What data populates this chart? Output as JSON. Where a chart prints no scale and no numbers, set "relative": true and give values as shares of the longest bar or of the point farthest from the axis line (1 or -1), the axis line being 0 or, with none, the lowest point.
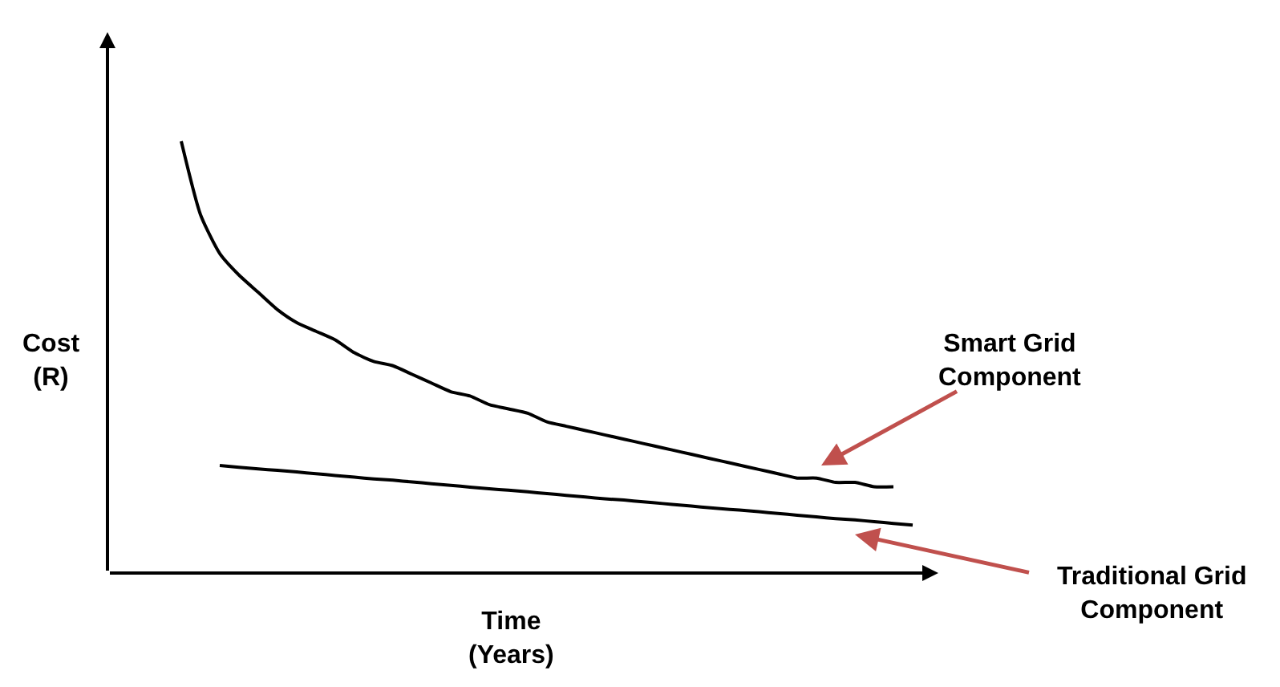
{
  "chart_data": {
    "type": "line",
    "relative": true,
    "xlabel": "Time\n(Years)",
    "ylabel": "Cost\n(R)",
    "categories": [
      null,
      null,
      null,
      null,
      null,
      null,
      null,
      null,
      null,
      null,
      null,
      null,
      null,
      null,
      null,
      null,
      null,
      null,
      null,
      null,
      null,
      null,
      null,
      null,
      null,
      null,
      null,
      null,
      null,
      null,
      null,
      null,
      null,
      null,
      null,
      null,
      null,
      null,
      null
    ],
    "series": [
      {
        "color": "#000000",
        "values": [
          1.0,
          0.83,
          0.74,
          0.69,
          0.65,
          0.61,
          0.58,
          0.56,
          0.54,
          0.51,
          0.49,
          0.48,
          0.46,
          0.44,
          0.42,
          0.41,
          0.39,
          0.38,
          0.37,
          0.35,
          0.34,
          0.33,
          0.32,
          0.31,
          0.3,
          0.29,
          0.28,
          0.27,
          0.26,
          0.25,
          0.24,
          0.23,
          0.22,
          0.22,
          0.21,
          0.21,
          0.2,
          0.2,
          null
        ]
      },
      {
        "color": "#000000",
        "values": [
          null,
          null,
          0.249,
          0.245,
          0.241,
          0.238,
          0.234,
          0.23,
          0.226,
          0.222,
          0.218,
          0.215,
          0.211,
          0.207,
          0.203,
          0.199,
          0.195,
          0.192,
          0.188,
          0.184,
          0.18,
          0.176,
          0.172,
          0.169,
          0.165,
          0.161,
          0.157,
          0.153,
          0.149,
          0.146,
          0.142,
          0.138,
          0.134,
          0.13,
          0.126,
          0.123,
          0.119,
          0.115,
          0.111
        ]
      }
    ],
    "annotations": [
      "Smart Grid\nComponent",
      "Traditional Grid\nComponent"
    ],
    "legend": false,
    "marker": "none",
    "line_style": "solid"
  }
}
